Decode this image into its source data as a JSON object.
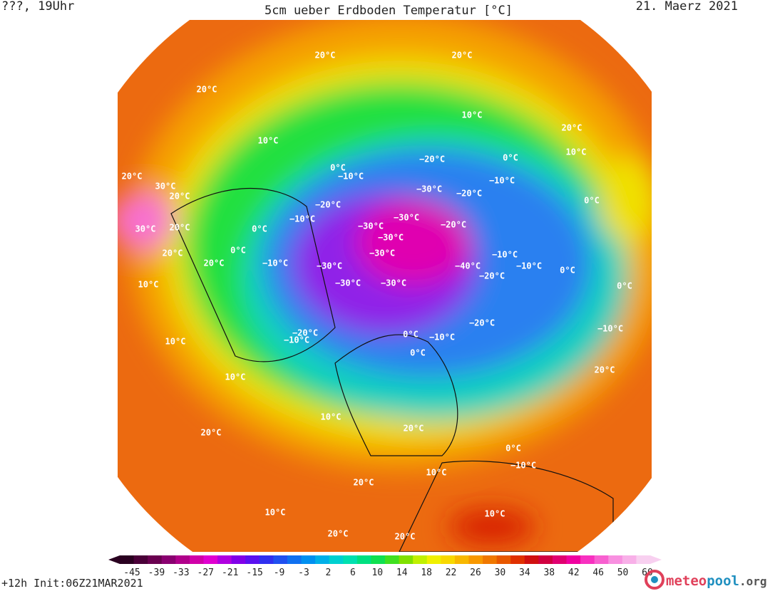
{
  "header": {
    "left": "???, 19Uhr",
    "title": "5cm ueber Erdboden Temperatur [°C]",
    "date": "21. Maerz 2021"
  },
  "footer": {
    "run": "+12h  Init:06Z21MAR2021",
    "brand": "meteo",
    "brand2": "pool",
    "brand3": ".org"
  },
  "colorbar": {
    "ticks": [
      -45,
      -39,
      -33,
      -27,
      -21,
      -15,
      -9,
      -3,
      2,
      6,
      10,
      14,
      18,
      22,
      26,
      30,
      34,
      38,
      42,
      46,
      50,
      60
    ],
    "colors": [
      "#2a0020",
      "#4a0038",
      "#6a0050",
      "#8a0070",
      "#b0008a",
      "#d000a8",
      "#e000d0",
      "#b000e0",
      "#8000e8",
      "#5a10f0",
      "#3030f0",
      "#2050f0",
      "#1070f0",
      "#0090f0",
      "#00b0e8",
      "#00d0d0",
      "#00e0b0",
      "#00e080",
      "#10e050",
      "#40e020",
      "#80e000",
      "#c0f000",
      "#f0f000",
      "#f8d800",
      "#f8b800",
      "#f89800",
      "#f07800",
      "#e85800",
      "#e03000",
      "#d01010",
      "#d00040",
      "#e00070",
      "#f000a0",
      "#f830c0",
      "#f860d0",
      "#f890e0",
      "#f8b0e8",
      "#f8d0f0"
    ]
  },
  "labels": [
    "20°C",
    "20°C",
    "20°C",
    "10°C",
    "10°C",
    "0°C",
    "−10°C",
    "−20°C",
    "−30°C",
    "−20°C",
    "−10°C",
    "0°C",
    "−10°C",
    "−20°C",
    "−30°C",
    "−30°C",
    "−20°C",
    "−30°C",
    "−30°C",
    "−40°C",
    "−20°C",
    "−10°C",
    "−30°C",
    "−30°C",
    "−30°C",
    "−20°C",
    "−10°C",
    "0°C",
    "0°C",
    "−10°C",
    "−10°C",
    "0°C",
    "0°C",
    "10°C",
    "20°C",
    "20°C",
    "10°C",
    "20°C",
    "30°C",
    "20°C",
    "10°C",
    "0°C",
    "−20°C",
    "−10°C",
    "0°C",
    "10°C",
    "20°C",
    "20°C",
    "10°C",
    "0°C",
    "−10°C",
    "10°C",
    "20°C",
    "10°C",
    "20°C",
    "20°C",
    "30°C",
    "20°C",
    "20°C",
    "20°C",
    "10°C",
    "0°C",
    "−10°C"
  ]
}
